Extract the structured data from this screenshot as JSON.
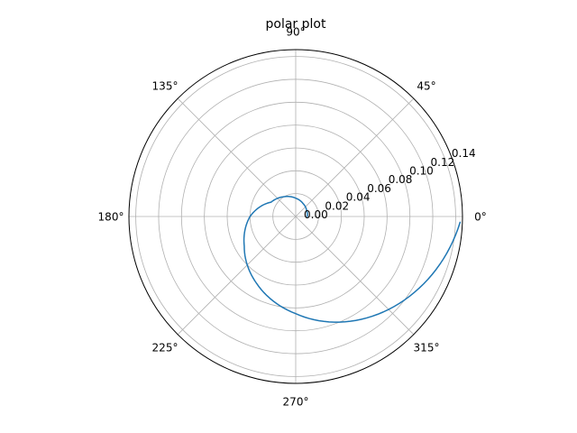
{
  "chart_data": {
    "type": "line",
    "projection": "polar",
    "title": "polar plot",
    "theta_ticks": [
      "0°",
      "45°",
      "90°",
      "135°",
      "180°",
      "225°",
      "270°",
      "315°"
    ],
    "theta_tick_degrees": [
      0,
      45,
      90,
      135,
      180,
      225,
      270,
      315
    ],
    "r_ticks": [
      "0.00",
      "0.02",
      "0.04",
      "0.06",
      "0.08",
      "0.10",
      "0.12",
      "0.14"
    ],
    "r_tick_values": [
      0,
      0.02,
      0.04,
      0.06,
      0.08,
      0.1,
      0.12,
      0.14
    ],
    "rlim": [
      0,
      0.146
    ],
    "grid": true,
    "series": [
      {
        "color": "#1f77b4",
        "theta_deg": [
          0,
          30,
          60,
          90,
          120,
          150,
          180,
          210,
          240,
          270,
          300,
          330,
          358
        ],
        "r": [
          0.01,
          0.011,
          0.013,
          0.016,
          0.02,
          0.025,
          0.04,
          0.052,
          0.068,
          0.085,
          0.105,
          0.125,
          0.144
        ]
      }
    ]
  }
}
